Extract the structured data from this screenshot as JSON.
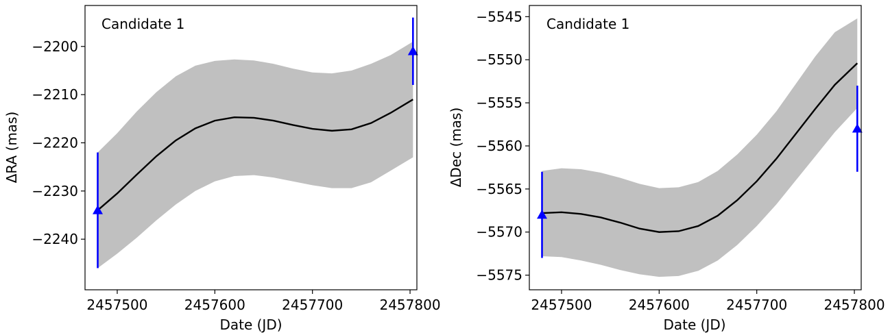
{
  "chart_data": [
    {
      "type": "line",
      "annotation": "Candidate 1",
      "xlabel": "Date (JD)",
      "ylabel": "ΔRA (mas)",
      "xlim": [
        2457467,
        2457807
      ],
      "ylim": [
        -2250.5,
        -2191.5
      ],
      "xticks": [
        2457500,
        2457600,
        2457700,
        2457800
      ],
      "xtick_labels": [
        "2457500",
        "2457600",
        "2457700",
        "2457800"
      ],
      "yticks": [
        -2240,
        -2230,
        -2220,
        -2210,
        -2200
      ],
      "ytick_labels": [
        "−2240",
        "−2230",
        "−2220",
        "−2210",
        "−2200"
      ],
      "grid": false,
      "colors": {
        "model": "#000000",
        "band": "#c0c0c0",
        "points": "#0000ff"
      },
      "series": [
        {
          "kind": "model",
          "x": [
            2457480,
            2457500,
            2457520,
            2457540,
            2457560,
            2457580,
            2457600,
            2457620,
            2457640,
            2457660,
            2457680,
            2457700,
            2457720,
            2457740,
            2457760,
            2457780,
            2457803
          ],
          "y": [
            -2234.0,
            -2230.5,
            -2226.6,
            -2222.8,
            -2219.5,
            -2217.0,
            -2215.4,
            -2214.7,
            -2214.8,
            -2215.4,
            -2216.3,
            -2217.1,
            -2217.5,
            -2217.2,
            -2215.9,
            -2213.8,
            -2211.0
          ],
          "upper": [
            -2222.0,
            -2218.0,
            -2213.5,
            -2209.5,
            -2206.2,
            -2204.0,
            -2203.0,
            -2202.7,
            -2202.9,
            -2203.6,
            -2204.6,
            -2205.4,
            -2205.6,
            -2205.0,
            -2203.6,
            -2201.8,
            -2199.0
          ],
          "lower": [
            -2246.0,
            -2243.0,
            -2239.7,
            -2236.1,
            -2232.8,
            -2230.0,
            -2228.0,
            -2226.9,
            -2226.7,
            -2227.2,
            -2228.0,
            -2228.8,
            -2229.4,
            -2229.4,
            -2228.2,
            -2225.8,
            -2223.0
          ]
        },
        {
          "kind": "points",
          "x": [
            2457480,
            2457803
          ],
          "y": [
            -2234,
            -2201
          ],
          "err": [
            12,
            7
          ]
        }
      ]
    },
    {
      "type": "line",
      "annotation": "Candidate 1",
      "xlabel": "Date (JD)",
      "ylabel": "ΔDec (mas)",
      "xlim": [
        2457467,
        2457807
      ],
      "ylim": [
        -5576.7,
        -5543.7
      ],
      "xticks": [
        2457500,
        2457600,
        2457700,
        2457800
      ],
      "xtick_labels": [
        "2457500",
        "2457600",
        "2457700",
        "2457800"
      ],
      "yticks": [
        -5575,
        -5570,
        -5565,
        -5560,
        -5555,
        -5550,
        -5545
      ],
      "ytick_labels": [
        "−5575",
        "−5570",
        "−5565",
        "−5560",
        "−5555",
        "−5550",
        "−5545"
      ],
      "grid": false,
      "colors": {
        "model": "#000000",
        "band": "#c0c0c0",
        "points": "#0000ff"
      },
      "series": [
        {
          "kind": "model",
          "x": [
            2457480,
            2457500,
            2457520,
            2457540,
            2457560,
            2457580,
            2457600,
            2457620,
            2457640,
            2457660,
            2457680,
            2457700,
            2457720,
            2457740,
            2457760,
            2457780,
            2457803
          ],
          "y": [
            -5567.8,
            -5567.7,
            -5567.9,
            -5568.3,
            -5568.9,
            -5569.6,
            -5570.0,
            -5569.9,
            -5569.3,
            -5568.1,
            -5566.3,
            -5564.1,
            -5561.5,
            -5558.6,
            -5555.7,
            -5552.9,
            -5550.4
          ],
          "upper": [
            -5562.9,
            -5562.6,
            -5562.7,
            -5563.1,
            -5563.7,
            -5564.4,
            -5564.9,
            -5564.8,
            -5564.2,
            -5562.9,
            -5561.0,
            -5558.7,
            -5556.0,
            -5552.8,
            -5549.6,
            -5546.8,
            -5545.2
          ],
          "lower": [
            -5572.8,
            -5572.9,
            -5573.3,
            -5573.8,
            -5574.4,
            -5574.9,
            -5575.2,
            -5575.1,
            -5574.5,
            -5573.3,
            -5571.5,
            -5569.3,
            -5566.8,
            -5564.0,
            -5561.2,
            -5558.4,
            -5555.6
          ]
        },
        {
          "kind": "points",
          "x": [
            2457480,
            2457803
          ],
          "y": [
            -5568,
            -5558
          ],
          "err": [
            5,
            5
          ]
        }
      ]
    }
  ]
}
